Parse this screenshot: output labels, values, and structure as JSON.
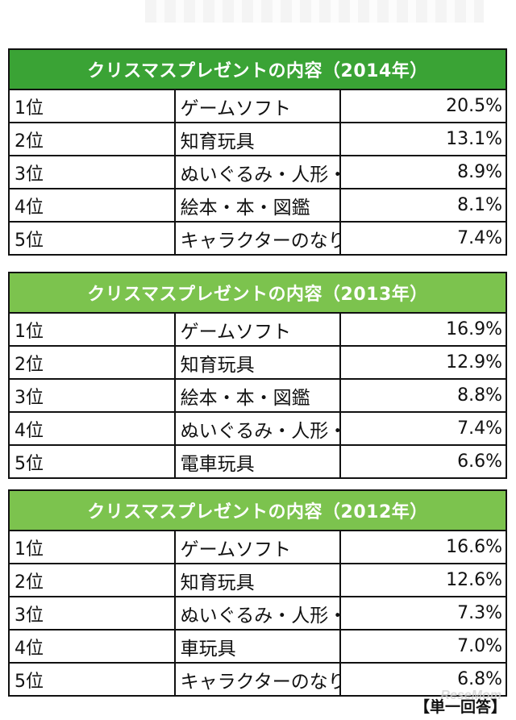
{
  "tables": [
    {
      "title": "クリスマスプレゼントの内容（2014年）",
      "header_color": "#3aa335",
      "rows": [
        {
          "rank": "1位",
          "item": "ゲームソフト",
          "pct": "20.5%"
        },
        {
          "rank": "2位",
          "item": "知育玩具",
          "pct": "13.1%"
        },
        {
          "rank": "3位",
          "item": "ぬいぐるみ・人形・フィギュア・ロボット",
          "pct": "8.9%"
        },
        {
          "rank": "4位",
          "item": "絵本・本・図鑑",
          "pct": "8.1%"
        },
        {
          "rank": "5位",
          "item": "キャラクターのなりきり・変身玩具",
          "pct": "7.4%"
        }
      ]
    },
    {
      "title": "クリスマスプレゼントの内容（2013年）",
      "header_color": "#7cc34e",
      "rows": [
        {
          "rank": "1位",
          "item": "ゲームソフト",
          "pct": "16.9%"
        },
        {
          "rank": "2位",
          "item": "知育玩具",
          "pct": "12.9%"
        },
        {
          "rank": "3位",
          "item": "絵本・本・図鑑",
          "pct": "8.8%"
        },
        {
          "rank": "4位",
          "item": "ぬいぐるみ・人形・フィギュア・ロボット",
          "pct": "7.4%"
        },
        {
          "rank": "5位",
          "item": "電車玩具",
          "pct": "6.6%"
        }
      ]
    },
    {
      "title": "クリスマスプレゼントの内容（2012年）",
      "header_color": "#7cc34e",
      "rows": [
        {
          "rank": "1位",
          "item": "ゲームソフト",
          "pct": "16.6%"
        },
        {
          "rank": "2位",
          "item": "知育玩具",
          "pct": "12.6%"
        },
        {
          "rank": "3位",
          "item": "ぬいぐるみ・人形・フィギュア・ロボット",
          "pct": "7.3%"
        },
        {
          "rank": "4位",
          "item": "車玩具",
          "pct": "7.0%"
        },
        {
          "rank": "5位",
          "item": "キャラクターのなりきり・変身玩具",
          "pct": "6.8%"
        }
      ]
    }
  ],
  "footer": {
    "unit_label": "【単一回答】",
    "watermark": "ReseMom"
  }
}
